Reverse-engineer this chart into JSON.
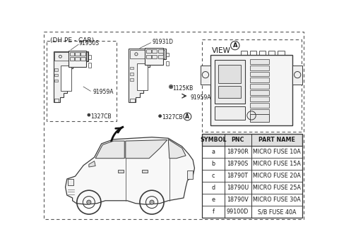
{
  "bg_color": "#ffffff",
  "dashed_box_label": "(DH PE - CAR)",
  "table_headers": [
    "SYMBOL",
    "PNC",
    "PART NAME"
  ],
  "table_rows": [
    [
      "a",
      "18790R",
      "MICRO FUSE 10A"
    ],
    [
      "b",
      "18790S",
      "MICRO FUSE 15A"
    ],
    [
      "c",
      "18790T",
      "MICRO FUSE 20A"
    ],
    [
      "d",
      "18790U",
      "MICRO FUSE 25A"
    ],
    [
      "e",
      "18790V",
      "MICRO FUSE 30A"
    ],
    [
      "f",
      "99100D",
      "S/B FUSE 40A"
    ]
  ],
  "line_color": "#3a3a3a",
  "dashed_color": "#555555",
  "table_line_color": "#333333",
  "font_color": "#1a1a1a",
  "font_size_label": 5.5,
  "font_size_table": 5.8,
  "font_size_header": 6.5
}
